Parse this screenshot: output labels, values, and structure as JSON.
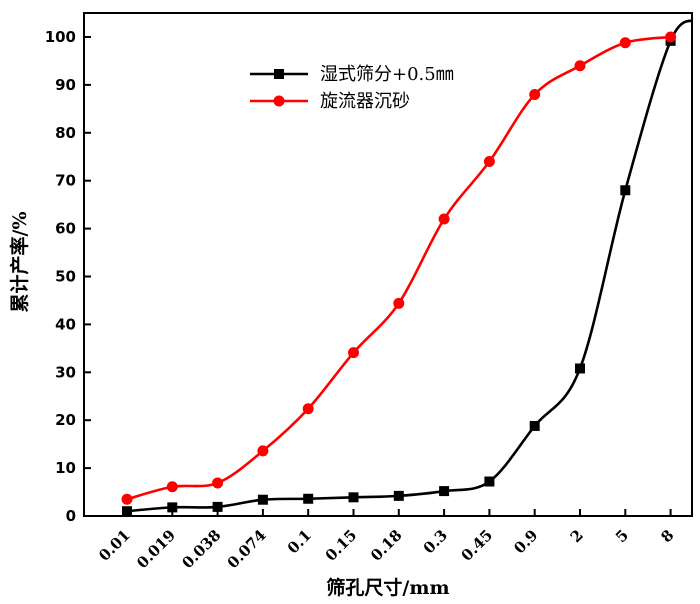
{
  "chart_data": {
    "type": "line",
    "title": "",
    "xlabel": "筛孔尺寸/mm",
    "ylabel": "累计产率/%",
    "categories": [
      "0.01",
      "0.019",
      "0.038",
      "0.074",
      "0.1",
      "0.15",
      "0.18",
      "0.3",
      "0.45",
      "0.9",
      "2",
      "5",
      "8"
    ],
    "ylim": [
      0,
      100
    ],
    "yticks": [
      0,
      10,
      20,
      30,
      40,
      50,
      60,
      70,
      80,
      90,
      100
    ],
    "legend_position": "top-center",
    "series": [
      {
        "name": "湿式筛分+0.5㎜",
        "color": "#000000",
        "marker": "square",
        "values": [
          1.0,
          1.8,
          1.9,
          3.4,
          3.6,
          3.9,
          4.2,
          5.2,
          7.2,
          18.8,
          30.8,
          68.0,
          99.2
        ]
      },
      {
        "name": "旋流器沉砂",
        "color": "#ff0000",
        "marker": "circle",
        "values": [
          3.5,
          6.1,
          6.9,
          13.6,
          22.4,
          34.1,
          44.4,
          62.0,
          74.0,
          88.0,
          94.0,
          98.8,
          100.0
        ]
      }
    ]
  }
}
